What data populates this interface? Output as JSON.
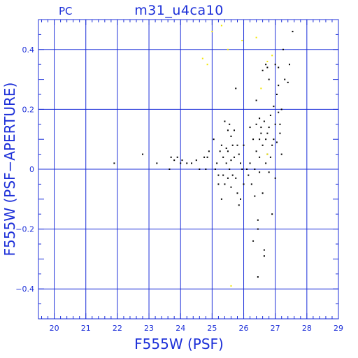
{
  "chart_data": {
    "type": "scatter",
    "title": "m31_u4ca10",
    "corner_label": "PC",
    "xlabel": "F555W (PSF)",
    "ylabel": "F555W (PSF−APERTURE)",
    "xlim": [
      19.5,
      29
    ],
    "ylim": [
      -0.5,
      0.5
    ],
    "x_ticks": [
      20,
      21,
      22,
      23,
      24,
      25,
      26,
      27,
      28,
      29
    ],
    "x_tick_labels": [
      "20",
      "21",
      "22",
      "23",
      "24",
      "25",
      "26",
      "27",
      "28",
      "29"
    ],
    "y_ticks": [
      -0.4,
      -0.2,
      0,
      0.2,
      0.4
    ],
    "y_tick_labels": [
      "−0.4",
      "−0.2",
      "0",
      "0.2",
      "0.4"
    ],
    "grid": true,
    "grid_color": "#1c2fd8",
    "series": [
      {
        "color": "#000000",
        "points": [
          [
            21.9,
            0.02
          ],
          [
            22.8,
            0.05
          ],
          [
            23.25,
            0.02
          ],
          [
            23.65,
            0.0
          ],
          [
            23.7,
            0.04
          ],
          [
            23.8,
            0.03
          ],
          [
            23.9,
            0.04
          ],
          [
            24.0,
            0.02
          ],
          [
            24.05,
            0.03
          ],
          [
            24.2,
            0.02
          ],
          [
            24.35,
            0.02
          ],
          [
            24.5,
            0.03
          ],
          [
            24.6,
            0.0
          ],
          [
            24.75,
            0.04
          ],
          [
            24.8,
            0.0
          ],
          [
            24.85,
            0.04
          ],
          [
            24.9,
            0.06
          ],
          [
            25.05,
            0.1
          ],
          [
            25.1,
            0.0
          ],
          [
            25.15,
            0.02
          ],
          [
            25.2,
            -0.02
          ],
          [
            25.2,
            -0.05
          ],
          [
            25.25,
            0.06
          ],
          [
            25.3,
            0.08
          ],
          [
            25.3,
            -0.1
          ],
          [
            25.35,
            -0.02
          ],
          [
            25.35,
            0.04
          ],
          [
            25.4,
            0.16
          ],
          [
            25.4,
            -0.05
          ],
          [
            25.45,
            0.07
          ],
          [
            25.45,
            0.02
          ],
          [
            25.5,
            0.13
          ],
          [
            25.5,
            0.06
          ],
          [
            25.5,
            -0.03
          ],
          [
            25.55,
            0.15
          ],
          [
            25.55,
            0.0
          ],
          [
            25.6,
            0.11
          ],
          [
            25.6,
            0.03
          ],
          [
            25.6,
            -0.06
          ],
          [
            25.65,
            0.08
          ],
          [
            25.65,
            -0.02
          ],
          [
            25.7,
            0.13
          ],
          [
            25.7,
            0.04
          ],
          [
            25.75,
            0.27
          ],
          [
            25.75,
            -0.03
          ],
          [
            25.8,
            0.08
          ],
          [
            25.8,
            -0.08
          ],
          [
            25.85,
            0.05
          ],
          [
            25.85,
            -0.12
          ],
          [
            25.9,
            0.02
          ],
          [
            25.9,
            -0.1
          ],
          [
            25.95,
            0.0
          ],
          [
            26.0,
            0.08
          ],
          [
            26.0,
            -0.05
          ],
          [
            26.1,
            0.0
          ],
          [
            26.15,
            -0.02
          ],
          [
            26.2,
            0.14
          ],
          [
            26.2,
            0.02
          ],
          [
            26.25,
            -0.05
          ],
          [
            26.3,
            0.1
          ],
          [
            26.3,
            -0.24
          ],
          [
            26.35,
            0.0
          ],
          [
            26.35,
            -0.09
          ],
          [
            26.4,
            0.23
          ],
          [
            26.4,
            0.15
          ],
          [
            26.4,
            0.06
          ],
          [
            26.45,
            -0.17
          ],
          [
            26.45,
            -0.2
          ],
          [
            26.45,
            -0.36
          ],
          [
            26.5,
            0.17
          ],
          [
            26.5,
            0.1
          ],
          [
            26.5,
            0.04
          ],
          [
            26.5,
            -0.01
          ],
          [
            26.55,
            0.14
          ],
          [
            26.55,
            0.12
          ],
          [
            26.6,
            0.33
          ],
          [
            26.6,
            0.08
          ],
          [
            26.6,
            -0.08
          ],
          [
            26.65,
            0.16
          ],
          [
            26.65,
            -0.27
          ],
          [
            26.65,
            -0.29
          ],
          [
            26.7,
            0.35
          ],
          [
            26.7,
            0.1
          ],
          [
            26.7,
            0.02
          ],
          [
            26.75,
            0.34
          ],
          [
            26.75,
            0.12
          ],
          [
            26.75,
            0.05
          ],
          [
            26.8,
            0.3
          ],
          [
            26.8,
            0.14
          ],
          [
            26.8,
            -0.01
          ],
          [
            26.85,
            0.18
          ],
          [
            26.85,
            0.04
          ],
          [
            26.9,
            0.08
          ],
          [
            26.9,
            -0.15
          ],
          [
            26.95,
            0.21
          ],
          [
            26.95,
            0.1
          ],
          [
            27.0,
            0.35
          ],
          [
            27.0,
            0.15
          ],
          [
            27.0,
            -0.03
          ],
          [
            27.05,
            0.25
          ],
          [
            27.05,
            0.09
          ],
          [
            27.1,
            0.34
          ],
          [
            27.1,
            0.28
          ],
          [
            27.1,
            0.19
          ],
          [
            27.15,
            0.15
          ],
          [
            27.15,
            0.12
          ],
          [
            27.2,
            0.2
          ],
          [
            27.2,
            0.05
          ],
          [
            27.25,
            0.4
          ],
          [
            27.3,
            0.3
          ],
          [
            27.4,
            0.29
          ],
          [
            27.45,
            0.35
          ],
          [
            27.55,
            0.46
          ]
        ]
      },
      {
        "color": "#f2e600",
        "points": [
          [
            24.7,
            0.37
          ],
          [
            24.85,
            0.35
          ],
          [
            25.0,
            0.46
          ],
          [
            25.3,
            0.48
          ],
          [
            25.5,
            0.4
          ],
          [
            25.95,
            0.43
          ],
          [
            26.4,
            0.44
          ],
          [
            26.55,
            0.27
          ],
          [
            26.75,
            0.36
          ],
          [
            26.9,
            0.38
          ],
          [
            26.75,
            0.05
          ],
          [
            25.6,
            -0.39
          ]
        ]
      }
    ]
  }
}
